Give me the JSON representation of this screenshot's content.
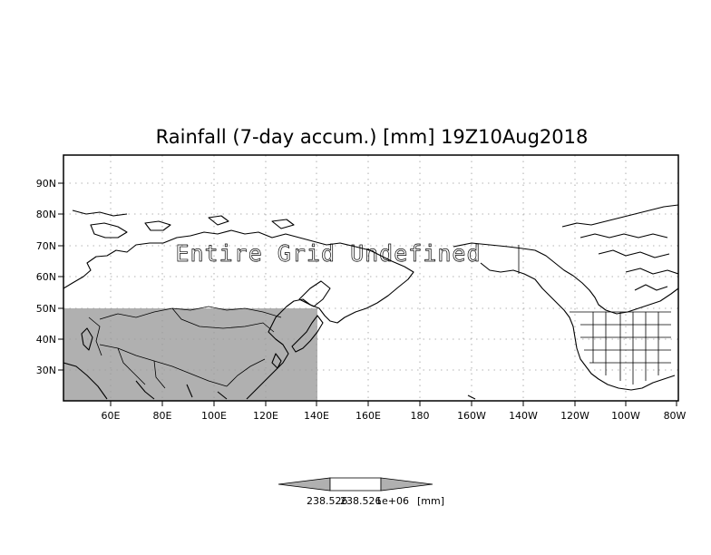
{
  "title": "Rainfall (7-day accum.) [mm] 19Z10Aug2018",
  "overlay_text": "Entire Grid Undefined",
  "map": {
    "lon_range": [
      "40E",
      "80W"
    ],
    "lat_range": [
      "20N",
      "98N"
    ],
    "lat_ticks": [
      "90N",
      "80N",
      "70N",
      "60N",
      "50N",
      "40N",
      "30N"
    ],
    "lon_ticks": [
      "60E",
      "80E",
      "100E",
      "120E",
      "140E",
      "160E",
      "180",
      "160W",
      "140W",
      "120W",
      "100W",
      "80W"
    ],
    "grid": true,
    "shaded_region": {
      "lon_range": [
        "40E",
        "140E"
      ],
      "lat_range": [
        "20N",
        "50N"
      ],
      "color": "#b0b0b0"
    }
  },
  "colorbar": {
    "labels": [
      "238.526",
      "238.526",
      "1e+06"
    ],
    "unit": "[mm]",
    "fill_color": "#b0b0b0"
  }
}
